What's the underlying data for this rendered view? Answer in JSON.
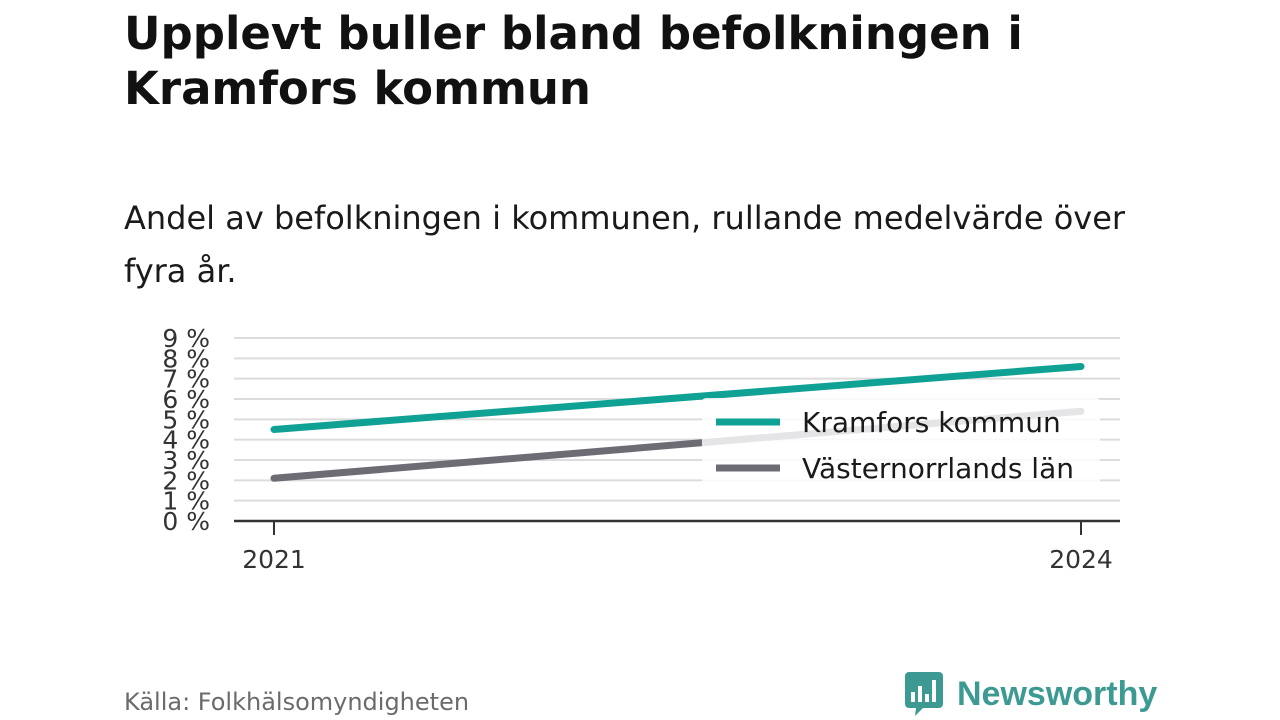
{
  "header": {
    "title": "Upplevt buller bland befolkningen i Kramfors kommun",
    "subtitle": "Andel av befolkningen i kommunen, rullande medelvärde över fyra år."
  },
  "footer": {
    "source": "Källa: Folkhälsomyndigheten",
    "brand": "Newsworthy",
    "brand_icon": "bar-chart-speech-bubble-icon"
  },
  "colors": {
    "kramfors": "#10a195",
    "lan": "#6d6c74",
    "brand": "#3c9a93",
    "grid": "#dcdcdc",
    "axis": "#333333"
  },
  "chart_data": {
    "type": "line",
    "title": "Upplevt buller bland befolkningen i Kramfors kommun",
    "subtitle": "Andel av befolkningen i kommunen, rullande medelvärde över fyra år.",
    "x": [
      "2021",
      "2024"
    ],
    "series": [
      {
        "name": "Kramfors kommun",
        "values": [
          4.5,
          7.6
        ]
      },
      {
        "name": "Västernorrlands län",
        "values": [
          2.1,
          5.4
        ]
      }
    ],
    "ylim": [
      0,
      9
    ],
    "yticks": [
      "0 %",
      "1 %",
      "2 %",
      "3 %",
      "4 %",
      "5 %",
      "6 %",
      "7 %",
      "8 %",
      "9 %"
    ],
    "xticks": [
      "2021",
      "2024"
    ],
    "grid": true,
    "legend": "right"
  }
}
